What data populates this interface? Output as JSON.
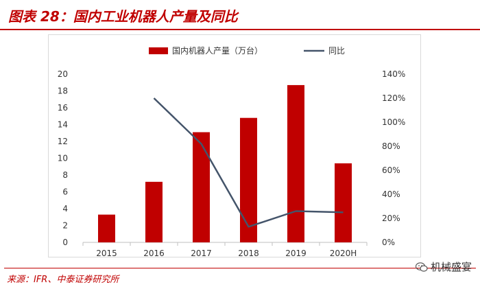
{
  "header": {
    "title": "图表 28：国内工业机器人产量及同比"
  },
  "footer": {
    "source": "来源：IFR、中泰证券研究所",
    "watermark": "机械盛宴"
  },
  "colors": {
    "bar": "#c00000",
    "line": "#44546a",
    "accent": "#c00000"
  },
  "chart_data": {
    "type": "bar+line",
    "categories": [
      "2015",
      "2016",
      "2017",
      "2018",
      "2019",
      "2020H"
    ],
    "series": [
      {
        "name": "国内机器人产量（万台）",
        "type": "bar",
        "axis": "left",
        "values": [
          3.3,
          7.2,
          13.1,
          14.8,
          18.7,
          9.4
        ]
      },
      {
        "name": "同比",
        "type": "line",
        "axis": "right",
        "values": [
          null,
          1.2,
          0.82,
          0.13,
          0.26,
          0.25
        ]
      }
    ],
    "y_left": {
      "min": 0,
      "max": 20,
      "step": 2,
      "ticks": [
        "0",
        "2",
        "4",
        "6",
        "8",
        "10",
        "12",
        "14",
        "16",
        "18",
        "20"
      ]
    },
    "y_right": {
      "min": 0,
      "max": 1.4,
      "step": 0.2,
      "ticks": [
        "0%",
        "20%",
        "40%",
        "60%",
        "80%",
        "100%",
        "120%",
        "140%"
      ]
    },
    "legend_position": "top",
    "grid": false
  }
}
